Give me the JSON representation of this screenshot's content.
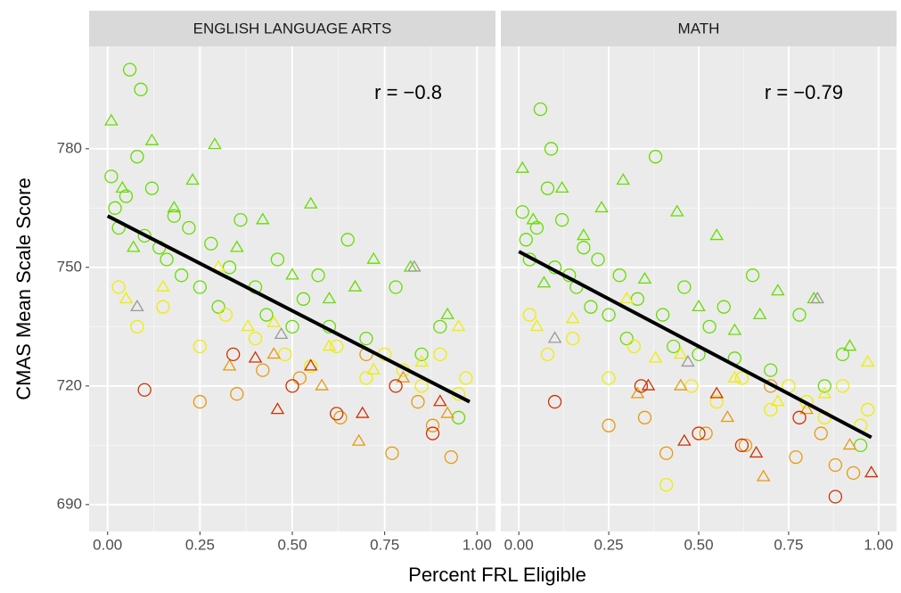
{
  "x_label": "Percent FRL Eligible",
  "y_label": "CMAS Mean Scale Score",
  "chart_data": [
    {
      "type": "scatter",
      "title": "ENGLISH LANGUAGE ARTS",
      "annotation": "r = −0.8",
      "xlim": [
        -0.05,
        1.05
      ],
      "ylim": [
        683.2,
        805.9
      ],
      "xticks": [
        {
          "value": 0,
          "label": "0.00"
        },
        0.25,
        {
          "value": 0.5,
          "label": "0.50"
        },
        0.75,
        {
          "value": 1,
          "label": "1.00"
        }
      ],
      "yticks": [
        690,
        720,
        750,
        780
      ],
      "grid": true,
      "fit": {
        "color": "#000000",
        "x": [
          0,
          0.98
        ],
        "y": [
          763,
          716
        ]
      },
      "series": [
        {
          "color": "#66dd00",
          "shape": "circle",
          "x": [
            0.01,
            0.02,
            0.03,
            0.05,
            0.06,
            0.08,
            0.09,
            0.1,
            0.12,
            0.14,
            0.16,
            0.18,
            0.2,
            0.22,
            0.25,
            0.28,
            0.3,
            0.33,
            0.36,
            0.4,
            0.43,
            0.46,
            0.5,
            0.53,
            0.57,
            0.6,
            0.65,
            0.7,
            0.78,
            0.85,
            0.9,
            0.95
          ],
          "y": [
            773,
            765,
            760,
            768,
            800,
            778,
            795,
            758,
            770,
            755,
            752,
            763,
            748,
            760,
            745,
            756,
            740,
            750,
            762,
            745,
            738,
            752,
            735,
            742,
            748,
            735,
            757,
            732,
            745,
            728,
            735,
            712
          ]
        },
        {
          "color": "#66dd00",
          "shape": "triangle",
          "x": [
            0.01,
            0.04,
            0.07,
            0.12,
            0.18,
            0.23,
            0.29,
            0.35,
            0.42,
            0.5,
            0.55,
            0.6,
            0.67,
            0.72,
            0.82,
            0.92
          ],
          "y": [
            787,
            770,
            755,
            782,
            765,
            772,
            781,
            755,
            762,
            748,
            766,
            742,
            745,
            752,
            750,
            738
          ]
        },
        {
          "color": "#eeee00",
          "shape": "circle",
          "x": [
            0.03,
            0.08,
            0.15,
            0.25,
            0.32,
            0.4,
            0.48,
            0.55,
            0.62,
            0.7,
            0.75,
            0.8,
            0.85,
            0.9,
            0.95,
            0.97
          ],
          "y": [
            745,
            735,
            740,
            730,
            738,
            732,
            728,
            725,
            730,
            722,
            728,
            724,
            720,
            728,
            718,
            722
          ]
        },
        {
          "color": "#eeee00",
          "shape": "triangle",
          "x": [
            0.05,
            0.15,
            0.3,
            0.38,
            0.45,
            0.6,
            0.72,
            0.85,
            0.95
          ],
          "y": [
            742,
            745,
            750,
            735,
            736,
            730,
            724,
            726,
            735
          ]
        },
        {
          "color": "#e69a10",
          "shape": "circle",
          "x": [
            0.25,
            0.35,
            0.42,
            0.52,
            0.63,
            0.7,
            0.77,
            0.84,
            0.88,
            0.93
          ],
          "y": [
            716,
            718,
            724,
            722,
            712,
            728,
            703,
            716,
            710,
            702
          ]
        },
        {
          "color": "#e69a10",
          "shape": "triangle",
          "x": [
            0.33,
            0.45,
            0.58,
            0.68,
            0.8,
            0.92
          ],
          "y": [
            725,
            728,
            720,
            706,
            722,
            713
          ]
        },
        {
          "color": "#cc3300",
          "shape": "circle",
          "x": [
            0.1,
            0.34,
            0.5,
            0.62,
            0.78,
            0.88
          ],
          "y": [
            719,
            728,
            720,
            713,
            720,
            708
          ]
        },
        {
          "color": "#cc3300",
          "shape": "triangle",
          "x": [
            0.4,
            0.46,
            0.55,
            0.69,
            0.9
          ],
          "y": [
            727,
            714,
            725,
            713,
            716
          ]
        },
        {
          "color": "#999999",
          "shape": "triangle",
          "x": [
            0.08,
            0.47,
            0.83
          ],
          "y": [
            740,
            733,
            750
          ]
        }
      ]
    },
    {
      "type": "scatter",
      "title": "MATH",
      "annotation": "r = −0.79",
      "xlim": [
        -0.05,
        1.05
      ],
      "ylim": [
        683.2,
        805.9
      ],
      "xticks": [
        {
          "value": 0,
          "label": "0.00"
        },
        0.25,
        {
          "value": 0.5,
          "label": "0.50"
        },
        0.75,
        {
          "value": 1,
          "label": "1.00"
        }
      ],
      "yticks": [
        690,
        720,
        750,
        780
      ],
      "grid": true,
      "fit": {
        "color": "#000000",
        "x": [
          0,
          0.98
        ],
        "y": [
          754,
          707
        ]
      },
      "series": [
        {
          "color": "#66dd00",
          "shape": "circle",
          "x": [
            0.01,
            0.02,
            0.03,
            0.05,
            0.06,
            0.08,
            0.09,
            0.1,
            0.12,
            0.14,
            0.16,
            0.18,
            0.2,
            0.22,
            0.25,
            0.28,
            0.3,
            0.33,
            0.38,
            0.4,
            0.43,
            0.46,
            0.5,
            0.53,
            0.57,
            0.6,
            0.65,
            0.7,
            0.78,
            0.85,
            0.9,
            0.95
          ],
          "y": [
            764,
            757,
            752,
            760,
            790,
            770,
            780,
            750,
            762,
            748,
            745,
            755,
            740,
            752,
            738,
            748,
            732,
            742,
            778,
            738,
            730,
            745,
            728,
            735,
            740,
            727,
            748,
            724,
            738,
            720,
            728,
            705
          ]
        },
        {
          "color": "#66dd00",
          "shape": "triangle",
          "x": [
            0.01,
            0.04,
            0.07,
            0.12,
            0.18,
            0.23,
            0.29,
            0.35,
            0.44,
            0.5,
            0.55,
            0.6,
            0.67,
            0.72,
            0.82,
            0.92
          ],
          "y": [
            775,
            762,
            746,
            770,
            758,
            765,
            772,
            747,
            764,
            740,
            758,
            734,
            738,
            744,
            742,
            730
          ]
        },
        {
          "color": "#eeee00",
          "shape": "circle",
          "x": [
            0.03,
            0.08,
            0.15,
            0.25,
            0.32,
            0.41,
            0.48,
            0.55,
            0.62,
            0.7,
            0.75,
            0.8,
            0.85,
            0.9,
            0.95,
            0.97
          ],
          "y": [
            738,
            728,
            732,
            722,
            730,
            695,
            720,
            716,
            722,
            714,
            720,
            716,
            712,
            720,
            710,
            714
          ]
        },
        {
          "color": "#eeee00",
          "shape": "triangle",
          "x": [
            0.05,
            0.15,
            0.3,
            0.38,
            0.45,
            0.6,
            0.72,
            0.85,
            0.97
          ],
          "y": [
            735,
            737,
            742,
            727,
            728,
            722,
            716,
            718,
            726
          ]
        },
        {
          "color": "#e69a10",
          "shape": "circle",
          "x": [
            0.25,
            0.35,
            0.41,
            0.52,
            0.63,
            0.7,
            0.77,
            0.84,
            0.88,
            0.93
          ],
          "y": [
            710,
            712,
            703,
            708,
            705,
            720,
            702,
            708,
            700,
            698
          ]
        },
        {
          "color": "#e69a10",
          "shape": "triangle",
          "x": [
            0.33,
            0.45,
            0.58,
            0.68,
            0.8,
            0.92
          ],
          "y": [
            718,
            720,
            712,
            697,
            714,
            705
          ]
        },
        {
          "color": "#cc3300",
          "shape": "circle",
          "x": [
            0.1,
            0.34,
            0.5,
            0.62,
            0.78,
            0.88
          ],
          "y": [
            716,
            720,
            708,
            705,
            712,
            692
          ]
        },
        {
          "color": "#cc3300",
          "shape": "triangle",
          "x": [
            0.36,
            0.46,
            0.55,
            0.66,
            0.98
          ],
          "y": [
            720,
            706,
            718,
            703,
            698
          ]
        },
        {
          "color": "#999999",
          "shape": "triangle",
          "x": [
            0.1,
            0.47,
            0.83
          ],
          "y": [
            732,
            726,
            742
          ]
        }
      ]
    }
  ]
}
